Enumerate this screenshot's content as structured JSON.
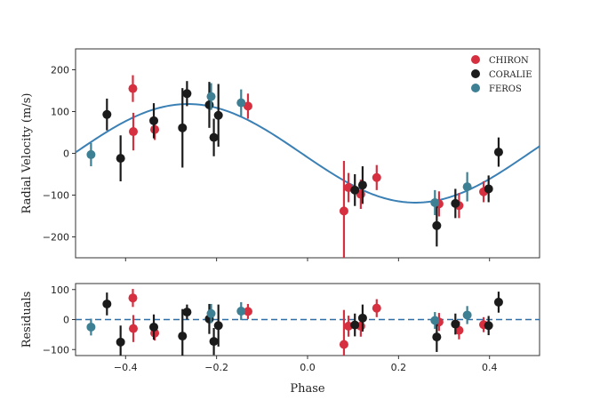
{
  "colors": {
    "CHIRON": "#d62f3f",
    "CORALIE": "#1b1b1b",
    "FEROS": "#3d7f93",
    "model": "#3b80b5",
    "zero_line": "#2f6fa8",
    "axes": "#333333"
  },
  "chart_data": [
    {
      "type": "scatter",
      "panel": "main",
      "ylabel": "Radial Velocity (m/s)",
      "xlim": [
        -0.51,
        0.51
      ],
      "ylim": [
        -250,
        250
      ],
      "xticks": [
        -0.4,
        -0.2,
        0.0,
        0.2,
        0.4
      ],
      "yticks": [
        200,
        100,
        0,
        -100,
        -200
      ],
      "ytick_labels": [
        "200",
        "100",
        "0",
        "−100",
        "−200"
      ],
      "legend": {
        "position": "top-right",
        "entries": [
          "CHIRON",
          "CORALIE",
          "FEROS"
        ]
      },
      "model": {
        "type": "sinusoid",
        "amplitude": 118,
        "period": 1.0,
        "peak_phase": -0.263,
        "offset": 0
      },
      "series": [
        {
          "name": "CHIRON",
          "points": [
            {
              "x": -0.384,
              "y": 155,
              "err": 32
            },
            {
              "x": -0.383,
              "y": 52,
              "err": 45
            },
            {
              "x": -0.336,
              "y": 57,
              "err": 25
            },
            {
              "x": -0.131,
              "y": 113,
              "err": 30
            },
            {
              "x": 0.08,
              "y": -138,
              "err": 120
            },
            {
              "x": 0.09,
              "y": -82,
              "err": 35
            },
            {
              "x": 0.117,
              "y": -98,
              "err": 35
            },
            {
              "x": 0.152,
              "y": -58,
              "err": 30
            },
            {
              "x": 0.289,
              "y": -121,
              "err": 30
            },
            {
              "x": 0.333,
              "y": -125,
              "err": 30
            },
            {
              "x": 0.387,
              "y": -92,
              "err": 25
            }
          ]
        },
        {
          "name": "CORALIE",
          "points": [
            {
              "x": -0.441,
              "y": 93,
              "err": 38
            },
            {
              "x": -0.411,
              "y": -12,
              "err": 55
            },
            {
              "x": -0.338,
              "y": 78,
              "err": 42
            },
            {
              "x": -0.275,
              "y": 61,
              "err": 95
            },
            {
              "x": -0.265,
              "y": 143,
              "err": 30
            },
            {
              "x": -0.216,
              "y": 116,
              "err": 55
            },
            {
              "x": -0.206,
              "y": 38,
              "err": 45
            },
            {
              "x": -0.196,
              "y": 91,
              "err": 75
            },
            {
              "x": 0.104,
              "y": -88,
              "err": 38
            },
            {
              "x": 0.121,
              "y": -76,
              "err": 45
            },
            {
              "x": 0.284,
              "y": -173,
              "err": 50
            },
            {
              "x": 0.325,
              "y": -120,
              "err": 35
            },
            {
              "x": 0.398,
              "y": -85,
              "err": 32
            },
            {
              "x": 0.42,
              "y": 3,
              "err": 35
            }
          ]
        },
        {
          "name": "FEROS",
          "points": [
            {
              "x": -0.476,
              "y": -3,
              "err": 28
            },
            {
              "x": -0.212,
              "y": 136,
              "err": 32
            },
            {
              "x": -0.146,
              "y": 121,
              "err": 32
            },
            {
              "x": 0.28,
              "y": -118,
              "err": 30
            },
            {
              "x": 0.351,
              "y": -80,
              "err": 35
            }
          ]
        }
      ]
    },
    {
      "type": "scatter",
      "panel": "residuals",
      "xlabel": "Phase",
      "ylabel": "Residuals",
      "xlim": [
        -0.51,
        0.51
      ],
      "ylim": [
        -120,
        120
      ],
      "xticks": [
        -0.4,
        -0.2,
        0.0,
        0.2,
        0.4
      ],
      "xtick_labels": [
        "−0.4",
        "−0.2",
        "0.0",
        "0.2",
        "0.4"
      ],
      "yticks": [
        100,
        0,
        -100
      ],
      "ytick_labels": [
        "100",
        "0",
        "−100"
      ],
      "zero_line": 0,
      "series": [
        {
          "name": "CHIRON",
          "points": [
            {
              "x": -0.384,
              "y": 72,
              "err": 30
            },
            {
              "x": -0.383,
              "y": -30,
              "err": 45
            },
            {
              "x": -0.336,
              "y": -45,
              "err": 25
            },
            {
              "x": -0.131,
              "y": 27,
              "err": 25
            },
            {
              "x": 0.08,
              "y": -83,
              "err": 115
            },
            {
              "x": 0.09,
              "y": -22,
              "err": 35
            },
            {
              "x": 0.117,
              "y": -22,
              "err": 35
            },
            {
              "x": 0.152,
              "y": 38,
              "err": 30
            },
            {
              "x": 0.289,
              "y": -8,
              "err": 30
            },
            {
              "x": 0.333,
              "y": -36,
              "err": 30
            },
            {
              "x": 0.387,
              "y": -17,
              "err": 25
            }
          ]
        },
        {
          "name": "CORALIE",
          "points": [
            {
              "x": -0.441,
              "y": 52,
              "err": 38
            },
            {
              "x": -0.411,
              "y": -75,
              "err": 55
            },
            {
              "x": -0.338,
              "y": -25,
              "err": 42
            },
            {
              "x": -0.275,
              "y": -55,
              "err": 90
            },
            {
              "x": -0.265,
              "y": 25,
              "err": 25
            },
            {
              "x": -0.216,
              "y": 2,
              "err": 50
            },
            {
              "x": -0.206,
              "y": -73,
              "err": 45
            },
            {
              "x": -0.196,
              "y": -20,
              "err": 70
            },
            {
              "x": 0.104,
              "y": -18,
              "err": 38
            },
            {
              "x": 0.121,
              "y": 5,
              "err": 45
            },
            {
              "x": 0.284,
              "y": -58,
              "err": 50
            },
            {
              "x": 0.325,
              "y": -15,
              "err": 35
            },
            {
              "x": 0.398,
              "y": -20,
              "err": 32
            },
            {
              "x": 0.42,
              "y": 58,
              "err": 35
            }
          ]
        },
        {
          "name": "FEROS",
          "points": [
            {
              "x": -0.476,
              "y": -25,
              "err": 28
            },
            {
              "x": -0.212,
              "y": 20,
              "err": 32
            },
            {
              "x": -0.146,
              "y": 28,
              "err": 30
            },
            {
              "x": 0.28,
              "y": -3,
              "err": 28
            },
            {
              "x": 0.351,
              "y": 15,
              "err": 30
            }
          ]
        }
      ]
    }
  ]
}
